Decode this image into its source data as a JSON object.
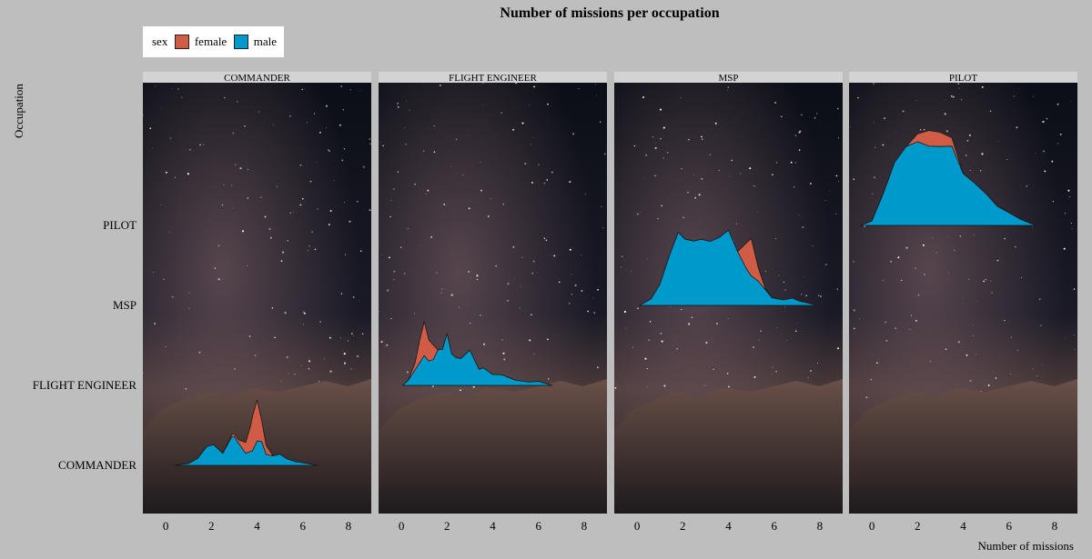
{
  "chart_data": {
    "type": "area",
    "subtype": "ridgeline-density",
    "title": "Number of missions per occupation",
    "xlabel": "Number of missions",
    "ylabel": "Occupation",
    "xlim": [
      -1,
      9
    ],
    "x_ticks": [
      "0",
      "2",
      "4",
      "6",
      "8"
    ],
    "y_categories": [
      "COMMANDER",
      "FLIGHT ENGINEER",
      "MSP",
      "PILOT"
    ],
    "legend": {
      "title": "sex",
      "placement": "top-left",
      "entries": [
        {
          "name": "female",
          "color": "#d05c46"
        },
        {
          "name": "male",
          "color": "#0099cc"
        }
      ]
    },
    "panel_background": "starry night sky photo",
    "facets": [
      {
        "name": "COMMANDER",
        "baseline_index": 0,
        "series": [
          {
            "name": "female",
            "x": [
              0.35,
              1.0,
              1.4,
              1.8,
              2.1,
              2.5,
              2.9,
              3.0,
              3.2,
              3.5,
              3.7,
              3.8,
              4.0,
              4.2,
              4.4,
              4.7,
              5.0,
              5.3,
              5.7,
              6.2,
              6.65
            ],
            "y": [
              0.0,
              0.05,
              0.19,
              0.52,
              0.57,
              0.33,
              0.86,
              0.87,
              0.7,
              0.63,
              1.05,
              1.35,
              1.8,
              1.25,
              0.55,
              0.26,
              0.31,
              0.18,
              0.1,
              0.05,
              0.0
            ]
          },
          {
            "name": "male",
            "x": [
              0.35,
              1.0,
              1.4,
              1.8,
              2.1,
              2.5,
              2.9,
              3.0,
              3.2,
              3.5,
              3.7,
              3.8,
              4.0,
              4.2,
              4.4,
              4.7,
              5.0,
              5.3,
              5.7,
              6.2,
              6.65
            ],
            "y": [
              0.0,
              0.05,
              0.19,
              0.52,
              0.57,
              0.33,
              0.79,
              0.8,
              0.6,
              0.33,
              0.38,
              0.4,
              0.67,
              0.66,
              0.3,
              0.26,
              0.31,
              0.18,
              0.1,
              0.05,
              0.0
            ]
          }
        ]
      },
      {
        "name": "FLIGHT ENGINEER",
        "baseline_index": 1,
        "series": [
          {
            "name": "female",
            "x": [
              0.05,
              0.3,
              0.6,
              0.8,
              1.0,
              1.2,
              1.4,
              1.6,
              1.8,
              2.0,
              2.2,
              2.4,
              2.6,
              3.0,
              3.4,
              3.6,
              4.0,
              4.4,
              5.0,
              5.6,
              6.0,
              6.6
            ],
            "y": [
              0.0,
              0.14,
              0.63,
              1.24,
              1.76,
              1.25,
              1.11,
              0.98,
              0.99,
              1.42,
              0.87,
              0.76,
              0.74,
              0.97,
              0.44,
              0.48,
              0.3,
              0.29,
              0.14,
              0.09,
              0.11,
              0.0
            ]
          },
          {
            "name": "male",
            "x": [
              0.05,
              0.3,
              0.6,
              0.8,
              1.0,
              1.2,
              1.4,
              1.6,
              1.8,
              2.0,
              2.2,
              2.4,
              2.6,
              3.0,
              3.4,
              3.6,
              4.0,
              4.4,
              5.0,
              5.6,
              6.0,
              6.6
            ],
            "y": [
              0.0,
              0.14,
              0.43,
              0.62,
              0.82,
              0.67,
              0.71,
              0.98,
              0.99,
              1.42,
              0.87,
              0.76,
              0.74,
              0.97,
              0.44,
              0.48,
              0.3,
              0.29,
              0.14,
              0.09,
              0.11,
              0.0
            ]
          }
        ]
      },
      {
        "name": "MSP",
        "baseline_index": 2,
        "series": [
          {
            "name": "female",
            "x": [
              0.1,
              0.6,
              1.0,
              1.4,
              1.8,
              2.1,
              2.5,
              2.8,
              3.2,
              3.6,
              4.0,
              4.4,
              4.8,
              5.0,
              5.3,
              5.6,
              5.9,
              6.4,
              6.8,
              7.1,
              7.9
            ],
            "y": [
              0.0,
              0.17,
              0.58,
              1.34,
              2.01,
              1.82,
              1.77,
              1.82,
              1.76,
              1.78,
              1.73,
              1.48,
              1.73,
              1.84,
              1.05,
              0.48,
              0.21,
              0.15,
              0.2,
              0.12,
              0.0
            ]
          },
          {
            "name": "male",
            "x": [
              0.1,
              0.6,
              1.0,
              1.4,
              1.8,
              2.1,
              2.5,
              2.8,
              3.2,
              3.6,
              4.0,
              4.4,
              4.8,
              5.0,
              5.3,
              5.6,
              5.9,
              6.4,
              6.8,
              7.1,
              7.9
            ],
            "y": [
              0.0,
              0.17,
              0.58,
              1.34,
              2.01,
              1.82,
              1.77,
              1.82,
              1.76,
              1.87,
              2.07,
              1.48,
              0.99,
              0.81,
              0.67,
              0.44,
              0.21,
              0.15,
              0.2,
              0.12,
              0.0
            ]
          }
        ]
      },
      {
        "name": "PILOT",
        "baseline_index": 3,
        "series": [
          {
            "name": "female",
            "x": [
              -0.5,
              0.0,
              0.5,
              1.0,
              1.5,
              2.0,
              2.5,
              3.0,
              3.5,
              4.0,
              4.5,
              5.0,
              5.5,
              6.0,
              6.5,
              7.0,
              7.2
            ],
            "y": [
              0.0,
              0.12,
              0.87,
              1.74,
              2.17,
              2.52,
              2.61,
              2.56,
              2.41,
              1.42,
              1.16,
              0.87,
              0.52,
              0.35,
              0.17,
              0.04,
              0.0
            ]
          },
          {
            "name": "male",
            "x": [
              -0.5,
              0.0,
              0.5,
              1.0,
              1.5,
              2.0,
              2.5,
              3.0,
              3.5,
              4.0,
              4.5,
              5.0,
              5.5,
              6.0,
              6.5,
              7.0,
              7.2
            ],
            "y": [
              0.0,
              0.12,
              0.87,
              1.74,
              2.17,
              2.3,
              2.18,
              2.17,
              2.18,
              1.42,
              1.16,
              0.87,
              0.52,
              0.35,
              0.17,
              0.04,
              0.0
            ]
          }
        ]
      }
    ]
  }
}
